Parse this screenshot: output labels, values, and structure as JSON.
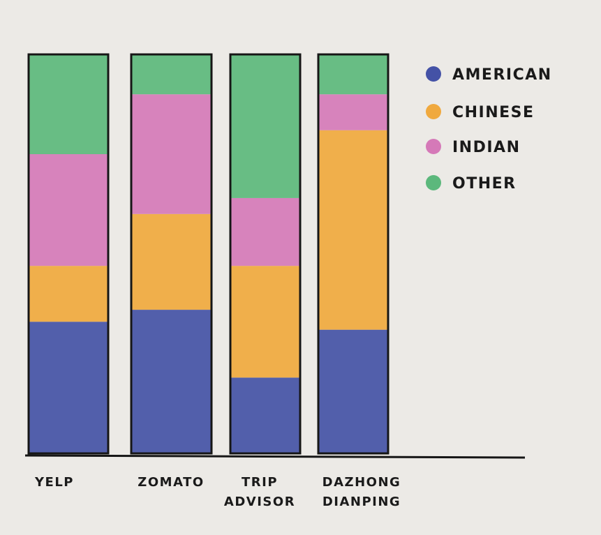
{
  "chart_data": {
    "type": "bar",
    "stacked": true,
    "title": "",
    "xlabel": "",
    "ylabel": "",
    "ylim": [
      0,
      100
    ],
    "grid": false,
    "legend_position": "top-right",
    "categories": [
      [
        "YELP"
      ],
      [
        "ZOMATO"
      ],
      [
        "TRIP",
        "ADVISOR"
      ],
      [
        "DAZHONG",
        "DIANPING"
      ]
    ],
    "series": [
      {
        "name": "AMERICAN",
        "color": "#4452a6",
        "values": [
          33,
          36,
          19,
          31
        ]
      },
      {
        "name": "CHINESE",
        "color": "#f0a93e",
        "values": [
          14,
          24,
          28,
          50
        ]
      },
      {
        "name": "INDIAN",
        "color": "#d579b8",
        "values": [
          28,
          30,
          17,
          9
        ]
      },
      {
        "name": "OTHER",
        "color": "#5cb87c",
        "values": [
          25,
          10,
          36,
          10
        ]
      }
    ]
  }
}
